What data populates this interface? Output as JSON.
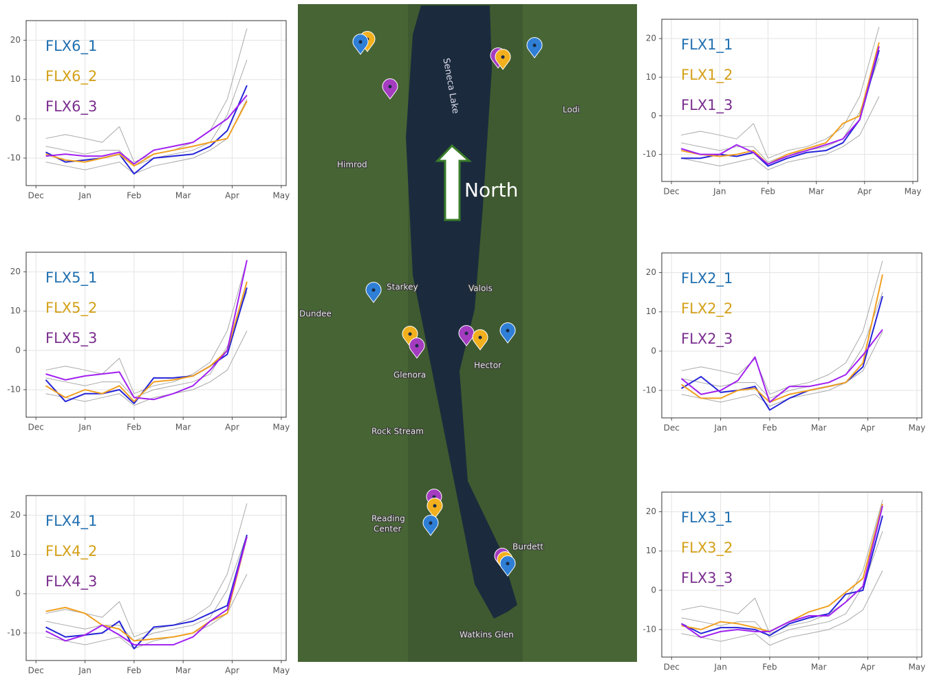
{
  "chart_data": [
    {
      "type": "line",
      "xlim": [
        -0.2,
        5.1
      ],
      "ylim": [
        -17,
        25
      ],
      "yticks": [
        -10,
        0,
        10,
        20
      ],
      "grid": true,
      "xticks": [
        {
          "value": 0,
          "label": "Dec"
        },
        {
          "value": 1,
          "label": "Jan"
        },
        {
          "value": 2,
          "label": "Feb"
        },
        {
          "value": 3,
          "label": "Mar"
        },
        {
          "value": 4,
          "label": "Apr"
        },
        {
          "value": 5,
          "label": "May"
        }
      ],
      "x": [
        0.2,
        0.6,
        1.0,
        1.35,
        1.7,
        2.0,
        2.4,
        2.8,
        3.2,
        3.55,
        3.9,
        4.3
      ],
      "series": [
        {
          "color": "#a8a8a8",
          "values": [
            -5,
            -4,
            -5,
            -6,
            -2,
            -11,
            -9,
            -8,
            -6,
            -3,
            5,
            23
          ]
        },
        {
          "color": "#a8a8a8",
          "values": [
            -11,
            -12,
            -13,
            -12,
            -11,
            -14,
            -12,
            -11,
            -10,
            -8,
            -5,
            5
          ]
        },
        {
          "color": "#a8a8a8",
          "values": [
            -7,
            -8,
            -9,
            -8,
            -8,
            -12,
            -10,
            -9,
            -8,
            -6,
            1,
            15
          ]
        },
        {
          "name": "FLX6_1",
          "color": "#2424d8",
          "label_color": "#1f6fb0",
          "values": [
            -8.5,
            -11,
            -10.5,
            -10,
            -9,
            -14,
            -10,
            -9.5,
            -9,
            -7,
            -3,
            8.5
          ]
        },
        {
          "name": "FLX6_2",
          "color": "#f0a020",
          "label_color": "#d4a017",
          "values": [
            -9,
            -10.5,
            -11,
            -10,
            -9,
            -12,
            -9,
            -8,
            -7,
            -6,
            -5,
            4.5
          ]
        },
        {
          "name": "FLX6_3",
          "color": "#a020f0",
          "label_color": "#7a2e8e",
          "values": [
            -9.5,
            -9,
            -9.5,
            -9.5,
            -8.5,
            -11.5,
            -8,
            -7,
            -6,
            -3,
            0,
            6
          ]
        }
      ]
    },
    {
      "type": "line",
      "xlim": [
        -0.2,
        5.1
      ],
      "ylim": [
        -17,
        25
      ],
      "yticks": [
        -10,
        0,
        10,
        20
      ],
      "grid": true,
      "xticks": [
        {
          "value": 0,
          "label": "Dec"
        },
        {
          "value": 1,
          "label": "Jan"
        },
        {
          "value": 2,
          "label": "Feb"
        },
        {
          "value": 3,
          "label": "Mar"
        },
        {
          "value": 4,
          "label": "Apr"
        },
        {
          "value": 5,
          "label": "May"
        }
      ],
      "x": [
        0.2,
        0.6,
        1.0,
        1.35,
        1.7,
        2.0,
        2.4,
        2.8,
        3.2,
        3.55,
        3.9,
        4.3
      ],
      "series": [
        {
          "color": "#a8a8a8",
          "values": [
            -5,
            -4,
            -5,
            -6,
            -2,
            -11,
            -9,
            -8,
            -6,
            -3,
            5,
            23
          ]
        },
        {
          "color": "#a8a8a8",
          "values": [
            -11,
            -12,
            -13,
            -12,
            -11,
            -14,
            -12,
            -11,
            -10,
            -8,
            -5,
            5
          ]
        },
        {
          "color": "#a8a8a8",
          "values": [
            -7,
            -8,
            -9,
            -8,
            -8,
            -12,
            -10,
            -9,
            -8,
            -6,
            1,
            15
          ]
        },
        {
          "name": "FLX5_1",
          "color": "#2424d8",
          "label_color": "#1f6fb0",
          "values": [
            -7.5,
            -13,
            -11,
            -11,
            -10,
            -13.5,
            -7,
            -7,
            -6.5,
            -4,
            -1,
            16
          ]
        },
        {
          "name": "FLX5_2",
          "color": "#f0a020",
          "label_color": "#d4a017",
          "values": [
            -9,
            -12,
            -10,
            -11,
            -9,
            -13,
            -8,
            -7.5,
            -6.5,
            -4,
            0,
            17.5
          ]
        },
        {
          "name": "FLX5_3",
          "color": "#a020f0",
          "label_color": "#7a2e8e",
          "values": [
            -6,
            -7.5,
            -6.5,
            -6,
            -5.5,
            -12,
            -12.5,
            -11,
            -9,
            -5,
            0,
            23
          ]
        }
      ]
    },
    {
      "type": "line",
      "xlim": [
        -0.2,
        5.1
      ],
      "ylim": [
        -17,
        25
      ],
      "yticks": [
        -10,
        0,
        10,
        20
      ],
      "grid": true,
      "xticks": [
        {
          "value": 0,
          "label": "Dec"
        },
        {
          "value": 1,
          "label": "Jan"
        },
        {
          "value": 2,
          "label": "Feb"
        },
        {
          "value": 3,
          "label": "Mar"
        },
        {
          "value": 4,
          "label": "Apr"
        },
        {
          "value": 5,
          "label": "May"
        }
      ],
      "x": [
        0.2,
        0.6,
        1.0,
        1.35,
        1.7,
        2.0,
        2.4,
        2.8,
        3.2,
        3.55,
        3.9,
        4.3
      ],
      "series": [
        {
          "color": "#a8a8a8",
          "values": [
            -5,
            -4,
            -5,
            -6,
            -2,
            -11,
            -9,
            -8,
            -6,
            -3,
            5,
            23
          ]
        },
        {
          "color": "#a8a8a8",
          "values": [
            -11,
            -12,
            -13,
            -12,
            -11,
            -14,
            -12,
            -11,
            -10,
            -8,
            -5,
            5
          ]
        },
        {
          "color": "#a8a8a8",
          "values": [
            -7,
            -8,
            -9,
            -8,
            -8,
            -12,
            -10,
            -9,
            -8,
            -6,
            1,
            15
          ]
        },
        {
          "name": "FLX4_1",
          "color": "#2424d8",
          "label_color": "#1f6fb0",
          "values": [
            -8.5,
            -11,
            -10.5,
            -10,
            -7,
            -14,
            -8.5,
            -8,
            -7,
            -5,
            -3,
            15
          ]
        },
        {
          "name": "FLX4_2",
          "color": "#f0a020",
          "label_color": "#d4a017",
          "values": [
            -4.5,
            -3.5,
            -5,
            -8,
            -9,
            -12,
            -11.5,
            -11,
            -10,
            -7,
            -5,
            14.5
          ]
        },
        {
          "name": "FLX4_3",
          "color": "#a020f0",
          "label_color": "#7a2e8e",
          "values": [
            -9.5,
            -12,
            -10.5,
            -8,
            -10.5,
            -13,
            -13,
            -13,
            -11,
            -7,
            -4,
            14.5
          ]
        }
      ]
    },
    {
      "type": "line",
      "xlim": [
        -0.2,
        5.1
      ],
      "ylim": [
        -17,
        25
      ],
      "yticks": [
        -10,
        0,
        10,
        20
      ],
      "grid": true,
      "xticks": [
        {
          "value": 0,
          "label": "Dec"
        },
        {
          "value": 1,
          "label": "Jan"
        },
        {
          "value": 2,
          "label": "Feb"
        },
        {
          "value": 3,
          "label": "Mar"
        },
        {
          "value": 4,
          "label": "Apr"
        },
        {
          "value": 5,
          "label": "May"
        }
      ],
      "x": [
        0.2,
        0.6,
        1.0,
        1.35,
        1.7,
        2.0,
        2.4,
        2.8,
        3.2,
        3.55,
        3.9,
        4.3
      ],
      "series": [
        {
          "color": "#a8a8a8",
          "values": [
            -5,
            -4,
            -5,
            -6,
            -2,
            -11,
            -9,
            -8,
            -6,
            -3,
            5,
            23
          ]
        },
        {
          "color": "#a8a8a8",
          "values": [
            -11,
            -12,
            -13,
            -12,
            -11,
            -14,
            -12,
            -11,
            -10,
            -8,
            -5,
            5
          ]
        },
        {
          "color": "#a8a8a8",
          "values": [
            -7,
            -8,
            -9,
            -8,
            -8,
            -12,
            -10,
            -9,
            -8,
            -6,
            1,
            15
          ]
        },
        {
          "name": "FLX1_1",
          "color": "#2424d8",
          "label_color": "#1f6fb0",
          "values": [
            -11,
            -11,
            -10,
            -10.5,
            -9.5,
            -13,
            -11,
            -9.5,
            -9,
            -7,
            -1,
            17
          ]
        },
        {
          "name": "FLX1_2",
          "color": "#f0a020",
          "label_color": "#d4a017",
          "values": [
            -9,
            -10,
            -10.5,
            -10,
            -9,
            -12.5,
            -10,
            -8.5,
            -7,
            -2,
            0,
            19
          ]
        },
        {
          "name": "FLX1_3",
          "color": "#a020f0",
          "label_color": "#7a2e8e",
          "values": [
            -8.5,
            -10,
            -10,
            -7.5,
            -9.5,
            -12.5,
            -10.5,
            -9,
            -7.5,
            -6,
            -1,
            18
          ]
        }
      ]
    },
    {
      "type": "line",
      "xlim": [
        -0.2,
        5.1
      ],
      "ylim": [
        -17,
        25
      ],
      "yticks": [
        -10,
        0,
        10,
        20
      ],
      "grid": true,
      "xticks": [
        {
          "value": 0,
          "label": "Dec"
        },
        {
          "value": 1,
          "label": "Jan"
        },
        {
          "value": 2,
          "label": "Feb"
        },
        {
          "value": 3,
          "label": "Mar"
        },
        {
          "value": 4,
          "label": "Apr"
        },
        {
          "value": 5,
          "label": "May"
        }
      ],
      "x": [
        0.2,
        0.6,
        1.0,
        1.35,
        1.7,
        2.0,
        2.4,
        2.8,
        3.2,
        3.55,
        3.9,
        4.3
      ],
      "series": [
        {
          "color": "#a8a8a8",
          "values": [
            -5,
            -4,
            -5,
            -6,
            -2,
            -11,
            -9,
            -8,
            -6,
            -3,
            5,
            23
          ]
        },
        {
          "color": "#a8a8a8",
          "values": [
            -11,
            -12,
            -13,
            -12,
            -11,
            -14,
            -12,
            -11,
            -10,
            -8,
            -5,
            5
          ]
        },
        {
          "color": "#a8a8a8",
          "values": [
            -7,
            -8,
            -9,
            -8,
            -8,
            -12,
            -10,
            -9,
            -8,
            -6,
            1,
            15
          ]
        },
        {
          "name": "FLX2_1",
          "color": "#2424d8",
          "label_color": "#1f6fb0",
          "values": [
            -9.5,
            -6.5,
            -10.5,
            -10,
            -9,
            -15,
            -12,
            -10,
            -9,
            -8,
            -4,
            14
          ]
        },
        {
          "name": "FLX2_2",
          "color": "#f0a020",
          "label_color": "#d4a017",
          "values": [
            -8.5,
            -12,
            -12,
            -10,
            -9.5,
            -13,
            -11,
            -10,
            -9,
            -8,
            -3,
            19.5
          ]
        },
        {
          "name": "FLX2_3",
          "color": "#a020f0",
          "label_color": "#7a2e8e",
          "values": [
            -7,
            -11,
            -10,
            -7.5,
            -1.5,
            -13,
            -9,
            -9,
            -8,
            -6,
            -1,
            5.5
          ]
        }
      ]
    },
    {
      "type": "line",
      "xlim": [
        -0.2,
        5.1
      ],
      "ylim": [
        -17,
        25
      ],
      "yticks": [
        -10,
        0,
        10,
        20
      ],
      "grid": true,
      "xticks": [
        {
          "value": 0,
          "label": "Dec"
        },
        {
          "value": 1,
          "label": "Jan"
        },
        {
          "value": 2,
          "label": "Feb"
        },
        {
          "value": 3,
          "label": "Mar"
        },
        {
          "value": 4,
          "label": "Apr"
        },
        {
          "value": 5,
          "label": "May"
        }
      ],
      "x": [
        0.2,
        0.6,
        1.0,
        1.35,
        1.7,
        2.0,
        2.4,
        2.8,
        3.2,
        3.55,
        3.9,
        4.3
      ],
      "series": [
        {
          "color": "#a8a8a8",
          "values": [
            -5,
            -4,
            -5,
            -6,
            -2,
            -11,
            -9,
            -8,
            -6,
            -3,
            5,
            23
          ]
        },
        {
          "color": "#a8a8a8",
          "values": [
            -11,
            -12,
            -13,
            -12,
            -11,
            -14,
            -12,
            -11,
            -10,
            -8,
            -5,
            5
          ]
        },
        {
          "color": "#a8a8a8",
          "values": [
            -7,
            -8,
            -9,
            -8,
            -8,
            -12,
            -10,
            -9,
            -8,
            -6,
            1,
            15
          ]
        },
        {
          "name": "FLX3_1",
          "color": "#2424d8",
          "label_color": "#1f6fb0",
          "values": [
            -8.5,
            -11,
            -9.5,
            -9.5,
            -10,
            -11.5,
            -8.5,
            -7,
            -6,
            -1,
            0,
            19
          ]
        },
        {
          "name": "FLX3_2",
          "color": "#f0a020",
          "label_color": "#d4a017",
          "values": [
            -9,
            -10,
            -8,
            -8.5,
            -9.5,
            -10.5,
            -8,
            -5.5,
            -4,
            -0.5,
            3,
            22
          ]
        },
        {
          "name": "FLX3_3",
          "color": "#a020f0",
          "label_color": "#7a2e8e",
          "values": [
            -8.5,
            -12,
            -10.5,
            -10,
            -10.5,
            -10.5,
            -8,
            -6.5,
            -6.5,
            -3,
            1,
            21.5
          ]
        }
      ]
    }
  ],
  "map": {
    "lake": "Seneca Lake",
    "arrow": "North",
    "labels": [
      "Lodi",
      "Himrod",
      "Starkey",
      "Valois",
      "Dundee",
      "Glenora",
      "Hector",
      "Rock Stream",
      "Reading",
      "Center",
      "Burdett",
      "Watkins Glen"
    ]
  }
}
